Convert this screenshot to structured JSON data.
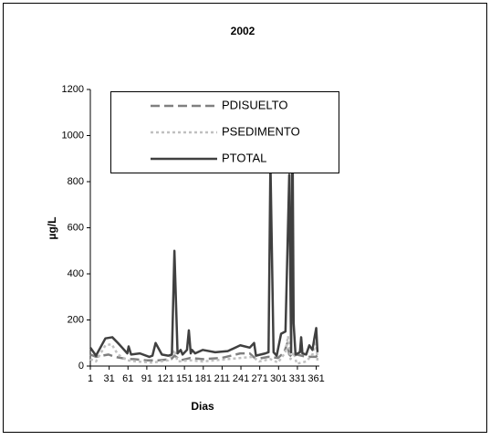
{
  "chart_data": {
    "type": "line",
    "title": "2002",
    "x_label": "Dias",
    "y_label": "µg/L",
    "xlim": [
      1,
      366
    ],
    "xticks": [
      1,
      31,
      61,
      91,
      121,
      151,
      181,
      211,
      241,
      271,
      301,
      331,
      361
    ],
    "ylim": [
      0,
      1200
    ],
    "yticks": [
      0,
      200,
      400,
      600,
      800,
      1000,
      1200
    ],
    "series": [
      {
        "name": "PDISUELTO",
        "color": "#808080",
        "style": "dashed",
        "x": [
          1,
          10,
          30,
          40,
          60,
          70,
          90,
          110,
          130,
          135,
          145,
          160,
          180,
          210,
          240,
          255,
          265,
          285,
          300,
          310,
          315,
          318,
          322,
          330,
          345,
          360,
          363
        ],
        "values": [
          50,
          40,
          50,
          40,
          30,
          30,
          25,
          25,
          30,
          45,
          25,
          35,
          30,
          35,
          55,
          55,
          30,
          40,
          35,
          60,
          100,
          50,
          40,
          50,
          40,
          40,
          45
        ]
      },
      {
        "name": "PSEDIMENTO",
        "color": "#c0c0c0",
        "style": "dotted",
        "x": [
          1,
          10,
          25,
          35,
          45,
          60,
          75,
          100,
          125,
          135,
          140,
          160,
          180,
          220,
          260,
          270,
          288,
          300,
          312,
          316,
          320,
          325,
          330,
          345,
          355,
          361,
          363
        ],
        "values": [
          30,
          20,
          90,
          95,
          50,
          25,
          20,
          15,
          25,
          70,
          20,
          25,
          20,
          30,
          40,
          20,
          30,
          15,
          60,
          130,
          30,
          60,
          10,
          20,
          50,
          110,
          20
        ]
      },
      {
        "name": "PTOTAL",
        "color": "#404040",
        "style": "solid",
        "x": [
          1,
          10,
          25,
          36,
          45,
          60,
          62,
          66,
          80,
          95,
          100,
          105,
          115,
          125,
          131,
          135,
          140,
          145,
          148,
          155,
          158,
          161,
          163,
          168,
          180,
          200,
          220,
          240,
          255,
          262,
          265,
          280,
          285,
          288,
          293,
          298,
          305,
          312,
          318,
          321,
          323,
          325,
          328,
          335,
          337,
          339,
          345,
          350,
          355,
          358,
          361,
          363
        ],
        "values": [
          80,
          45,
          120,
          125,
          100,
          55,
          85,
          50,
          55,
          40,
          45,
          100,
          50,
          45,
          50,
          500,
          55,
          70,
          50,
          70,
          155,
          55,
          70,
          55,
          70,
          60,
          65,
          90,
          80,
          100,
          45,
          55,
          60,
          885,
          60,
          45,
          140,
          150,
          830,
          60,
          1110,
          185,
          50,
          60,
          125,
          55,
          50,
          90,
          70,
          120,
          165,
          60
        ]
      }
    ]
  }
}
